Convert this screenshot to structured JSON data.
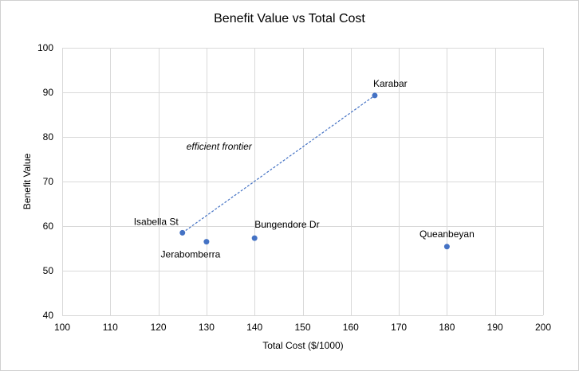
{
  "chart_data": {
    "type": "scatter",
    "title": "Benefit Value vs Total Cost",
    "xlabel": "Total Cost ($/1000)",
    "ylabel": "Benefit Value",
    "xlim": [
      100,
      200
    ],
    "ylim": [
      40,
      100
    ],
    "x_ticks": [
      100,
      110,
      120,
      130,
      140,
      150,
      160,
      170,
      180,
      190,
      200
    ],
    "y_ticks": [
      40,
      50,
      60,
      70,
      80,
      90,
      100
    ],
    "grid": true,
    "marker_color": "#4472C4",
    "points": [
      {
        "label": "Isabella St",
        "x": 125,
        "y": 58.5
      },
      {
        "label": "Jerabomberra",
        "x": 130,
        "y": 56.5
      },
      {
        "label": "Bungendore Dr",
        "x": 140,
        "y": 57.3
      },
      {
        "label": "Karabar",
        "x": 165,
        "y": 89.3
      },
      {
        "label": "Queanbeyan",
        "x": 180,
        "y": 55.4
      }
    ],
    "frontier": {
      "label": "efficient frontier",
      "style": "dashed",
      "color": "#4472C4",
      "from": {
        "x": 125,
        "y": 58.5
      },
      "to": {
        "x": 165,
        "y": 89.3
      }
    }
  }
}
